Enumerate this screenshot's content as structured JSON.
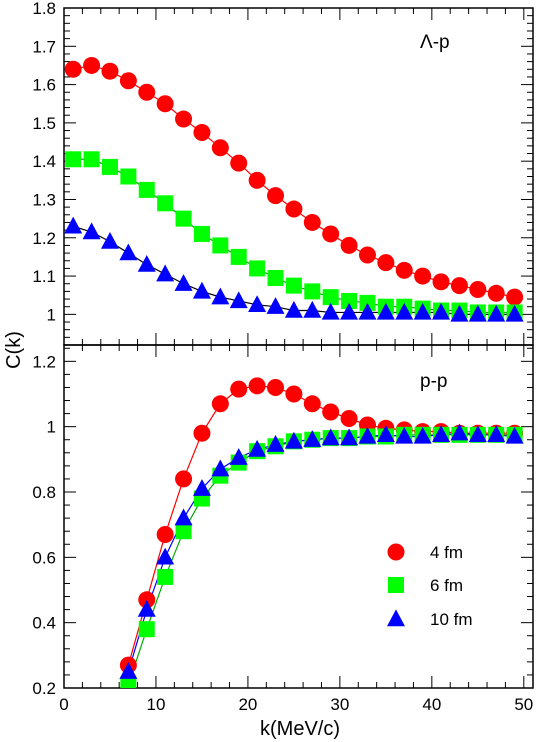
{
  "ylabel": "C(k)",
  "xlabel": "k(MeV/c)",
  "chart_data": [
    {
      "type": "scatter",
      "title": "Λ-p",
      "xlim": [
        0,
        51
      ],
      "ylim": [
        0.92,
        1.8
      ],
      "x_ticks": [
        0,
        10,
        20,
        30,
        40,
        50
      ],
      "y_ticks": [
        1,
        1.1,
        1.2,
        1.3,
        1.4,
        1.5,
        1.6,
        1.7,
        1.8
      ],
      "y_tick_labels": [
        "1",
        "1.1",
        "1.2",
        "1.3",
        "1.4",
        "1.5",
        "1.6",
        "1.7",
        "1.8"
      ],
      "x": [
        1,
        3,
        5,
        7,
        9,
        11,
        13,
        15,
        17,
        19,
        21,
        23,
        25,
        27,
        29,
        31,
        33,
        35,
        37,
        39,
        41,
        43,
        45,
        47,
        49
      ],
      "series": [
        {
          "name": "4 fm",
          "color": "#ff0000",
          "marker": "circle",
          "line_color": "#ff0000",
          "values": [
            1.64,
            1.65,
            1.635,
            1.61,
            1.58,
            1.55,
            1.51,
            1.475,
            1.435,
            1.395,
            1.35,
            1.31,
            1.275,
            1.24,
            1.21,
            1.18,
            1.155,
            1.135,
            1.115,
            1.1,
            1.085,
            1.075,
            1.065,
            1.055,
            1.045
          ]
        },
        {
          "name": "6 fm",
          "color": "#00ff00",
          "marker": "square",
          "line_color": "#00aa00",
          "values": [
            1.405,
            1.405,
            1.385,
            1.36,
            1.325,
            1.29,
            1.25,
            1.21,
            1.18,
            1.15,
            1.12,
            1.095,
            1.075,
            1.06,
            1.045,
            1.035,
            1.03,
            1.02,
            1.02,
            1.015,
            1.01,
            1.01,
            1.005,
            1.005,
            1.005
          ]
        },
        {
          "name": "10 fm",
          "color": "#0000ff",
          "marker": "triangle",
          "line_color": "#000000",
          "values": [
            1.23,
            1.215,
            1.19,
            1.16,
            1.13,
            1.105,
            1.08,
            1.06,
            1.045,
            1.035,
            1.025,
            1.02,
            1.01,
            1.01,
            1.005,
            1.005,
            1.005,
            1.005,
            1.005,
            1.005,
            1.005,
            1.0,
            1.0,
            1.0,
            1.0
          ]
        }
      ]
    },
    {
      "type": "scatter",
      "title": "p-p",
      "xlim": [
        0,
        51
      ],
      "ylim": [
        0.2,
        1.25
      ],
      "x_ticks": [
        0,
        10,
        20,
        30,
        40,
        50
      ],
      "x_tick_labels": [
        "0",
        "10",
        "20",
        "30",
        "40",
        "50"
      ],
      "y_ticks": [
        0.2,
        0.4,
        0.6,
        0.8,
        1.0,
        1.2
      ],
      "y_tick_labels": [
        "0.2",
        "0.4",
        "0.6",
        "0.8",
        "1",
        "1.2"
      ],
      "x": [
        7,
        9,
        11,
        13,
        15,
        17,
        19,
        21,
        23,
        25,
        27,
        29,
        31,
        33,
        35,
        37,
        39,
        41,
        43,
        45,
        47,
        49
      ],
      "series": [
        {
          "name": "4 fm",
          "color": "#ff0000",
          "marker": "circle",
          "line_color": "#ff0000",
          "values": [
            0.27,
            0.47,
            0.67,
            0.84,
            0.98,
            1.07,
            1.115,
            1.125,
            1.12,
            1.1,
            1.07,
            1.045,
            1.025,
            1.005,
            0.995,
            0.99,
            0.985,
            0.985,
            0.98,
            0.98,
            0.98,
            0.98
          ]
        },
        {
          "name": "6 fm",
          "color": "#00ff00",
          "marker": "square",
          "line_color": "#00aa00",
          "values": [
            0.21,
            0.38,
            0.54,
            0.68,
            0.78,
            0.85,
            0.89,
            0.925,
            0.94,
            0.955,
            0.96,
            0.965,
            0.965,
            0.97,
            0.97,
            0.975,
            0.975,
            0.975,
            0.975,
            0.975,
            0.975,
            0.975
          ]
        },
        {
          "name": "10 fm",
          "color": "#0000ff",
          "marker": "triangle",
          "line_color": "#0000ff",
          "values": [
            0.25,
            0.44,
            0.6,
            0.72,
            0.81,
            0.87,
            0.905,
            0.93,
            0.945,
            0.955,
            0.96,
            0.965,
            0.965,
            0.97,
            0.975,
            0.97,
            0.97,
            0.975,
            0.98,
            0.975,
            0.975,
            0.97
          ]
        }
      ]
    }
  ],
  "legend": {
    "placement": "lower-right of p-p panel",
    "entries": [
      {
        "label": "4 fm",
        "color": "#ff0000",
        "marker": "circle"
      },
      {
        "label": "6 fm",
        "color": "#00ff00",
        "marker": "square"
      },
      {
        "label": "10 fm",
        "color": "#0000ff",
        "marker": "triangle"
      }
    ]
  }
}
